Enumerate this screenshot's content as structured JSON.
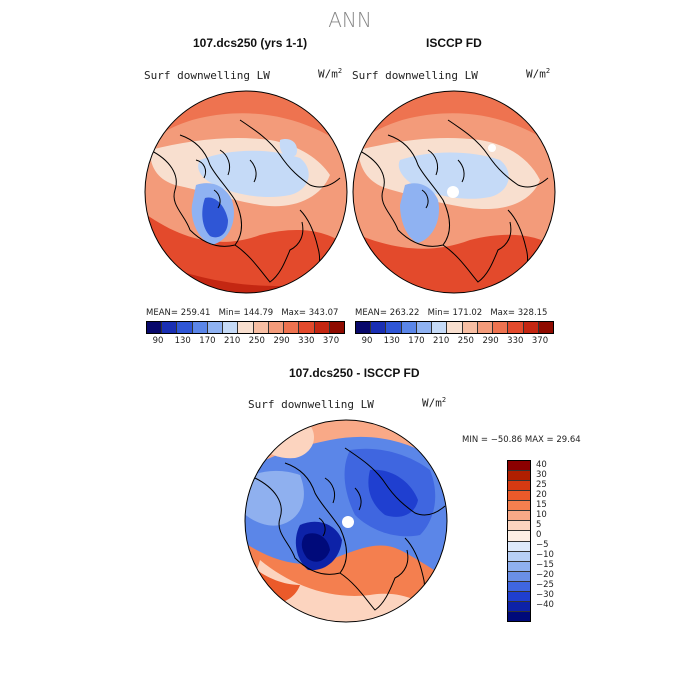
{
  "page_title": "ANN",
  "panels": {
    "model": {
      "title": "107.dcs250 (yrs 1-1)",
      "variable": "Surf downwelling LW",
      "units": "W/m",
      "units_sup": "2",
      "mean_label": "MEAN= 259.41",
      "min_label": "Min= 144.79",
      "max_label": "Max= 343.07"
    },
    "obs": {
      "title": "ISCCP FD",
      "variable": "Surf downwelling LW",
      "units": "W/m",
      "units_sup": "2",
      "mean_label": "MEAN= 263.22",
      "min_label": "Min= 171.02",
      "max_label": "Max= 328.15"
    },
    "diff": {
      "title": "107.dcs250 - ISCCP FD",
      "variable": "Surf downwelling LW",
      "units": "W/m",
      "units_sup": "2",
      "minmax_label": "MIN = −50.86 MAX =  29.64"
    }
  },
  "colorbar_abs": {
    "colors": [
      "#08086b",
      "#1a2fb3",
      "#2f56d6",
      "#5b86e8",
      "#8fb2f2",
      "#c5daf7",
      "#f8dfcf",
      "#f7bea3",
      "#f39b7a",
      "#ee7350",
      "#e34a2c",
      "#c42712",
      "#8f0b00"
    ],
    "ticks": [
      "90",
      "130",
      "170",
      "210",
      "250",
      "290",
      "330",
      "370"
    ]
  },
  "colorbar_diff": {
    "colors": [
      "#8b0000",
      "#b01f00",
      "#d53a12",
      "#eb5a2a",
      "#f47f4f",
      "#f9a987",
      "#fcd4bf",
      "#fdeee4",
      "#dde9fb",
      "#b7cff5",
      "#8fb0ef",
      "#6a8fe6",
      "#3f66e0",
      "#1f3fd0",
      "#0d22a8",
      "#000a7a"
    ],
    "ticks": [
      "40",
      "30",
      "25",
      "20",
      "15",
      "10",
      "5",
      "0",
      "−5",
      "−10",
      "−15",
      "−20",
      "−25",
      "−30",
      "−40"
    ]
  }
}
